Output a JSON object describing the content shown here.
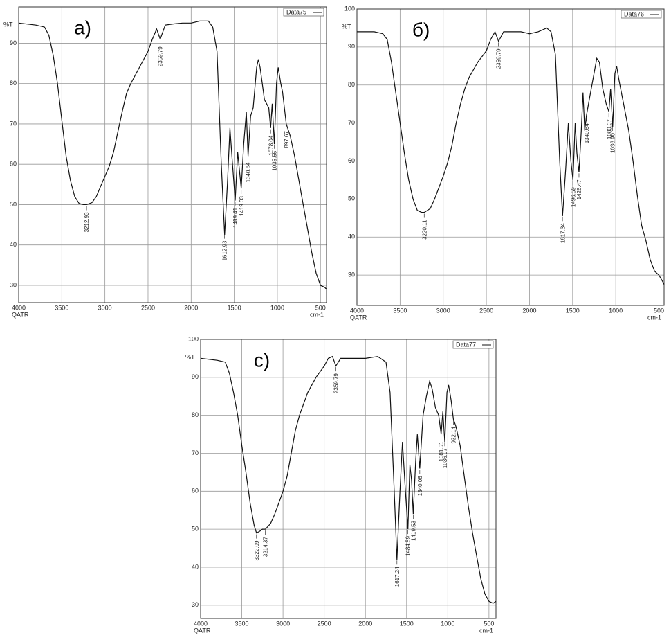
{
  "chart_data": [
    {
      "type": "line",
      "title": "a)",
      "y_label": "%T",
      "x_label": "cm-1",
      "mode_label": "QATR",
      "xlim": [
        4000,
        430
      ],
      "ylim": [
        25.7,
        99
      ],
      "xticks": [
        4000,
        3500,
        3000,
        2500,
        2000,
        1500,
        1000,
        500
      ],
      "yticks": [
        30,
        40,
        50,
        60,
        70,
        80,
        90
      ],
      "grid": true,
      "x": [
        4000,
        3800,
        3700,
        3650,
        3600,
        3550,
        3500,
        3450,
        3400,
        3350,
        3300,
        3250,
        3212,
        3150,
        3100,
        3050,
        3000,
        2950,
        2900,
        2850,
        2800,
        2750,
        2700,
        2600,
        2500,
        2450,
        2400,
        2359,
        2300,
        2200,
        2100,
        2000,
        1900,
        1800,
        1750,
        1700,
        1650,
        1612,
        1580,
        1550,
        1520,
        1489,
        1460,
        1419,
        1390,
        1360,
        1340,
        1310,
        1280,
        1240,
        1220,
        1200,
        1150,
        1100,
        1078,
        1060,
        1035,
        1010,
        990,
        960,
        940,
        897,
        850,
        800,
        750,
        700,
        650,
        600,
        550,
        500,
        450,
        430
      ],
      "series": [
        {
          "name": "Data75",
          "color": "#111111",
          "values": [
            95,
            94.5,
            94,
            92,
            87,
            80,
            71,
            62,
            56,
            52,
            50.3,
            50,
            50,
            50.5,
            52,
            54.5,
            57,
            59.5,
            63,
            68,
            73,
            77.5,
            80,
            84,
            88,
            91,
            93.5,
            91,
            94.5,
            94.8,
            95,
            95,
            95.5,
            95.5,
            94,
            88,
            60,
            42.5,
            55,
            69,
            60,
            51,
            63,
            54,
            65,
            73,
            62,
            72,
            74,
            84,
            86,
            84,
            76,
            74,
            69,
            75,
            65,
            80,
            84,
            80,
            78,
            70,
            67,
            62,
            56,
            50,
            44,
            38,
            33,
            30,
            29.5,
            29
          ]
        }
      ],
      "peaks": [
        {
          "value": 3212.93,
          "label": "3212.93"
        },
        {
          "value": 2359.79,
          "label": "2359.79"
        },
        {
          "value": 1612.93,
          "label": "1612.93"
        },
        {
          "value": 1489.41,
          "label": "1489.41"
        },
        {
          "value": 1419.03,
          "label": "1419.03"
        },
        {
          "value": 1340.64,
          "label": "1340.64"
        },
        {
          "value": 1078.04,
          "label": "1078.04"
        },
        {
          "value": 1035.55,
          "label": "1035.55"
        },
        {
          "value": 897.67,
          "label": "897.67"
        }
      ]
    },
    {
      "type": "line",
      "title": "б)",
      "y_label": "%T",
      "x_label": "cm-1",
      "mode_label": "QATR",
      "xlim": [
        4000,
        440
      ],
      "ylim": [
        22,
        100
      ],
      "xticks": [
        4000,
        3500,
        3000,
        2500,
        2000,
        1500,
        1000,
        500
      ],
      "yticks": [
        30,
        40,
        50,
        60,
        70,
        80,
        90,
        100
      ],
      "grid": true,
      "x": [
        4000,
        3800,
        3700,
        3650,
        3600,
        3550,
        3500,
        3450,
        3400,
        3350,
        3300,
        3250,
        3220,
        3150,
        3100,
        3050,
        3000,
        2950,
        2900,
        2850,
        2800,
        2750,
        2700,
        2600,
        2500,
        2450,
        2400,
        2359,
        2300,
        2200,
        2100,
        2000,
        1900,
        1800,
        1750,
        1700,
        1650,
        1617,
        1580,
        1550,
        1520,
        1496,
        1470,
        1450,
        1426,
        1400,
        1380,
        1360,
        1340,
        1300,
        1260,
        1220,
        1190,
        1150,
        1110,
        1080,
        1060,
        1036,
        1010,
        990,
        960,
        900,
        850,
        800,
        750,
        700,
        650,
        600,
        550,
        500,
        450,
        440
      ],
      "series": [
        {
          "name": "Data76",
          "color": "#111111",
          "values": [
            94,
            94,
            93.5,
            92,
            86,
            78,
            70,
            62,
            55,
            50,
            47,
            46.5,
            46.5,
            47.5,
            50,
            53,
            56,
            59.5,
            64,
            70,
            75,
            79,
            82,
            86,
            89,
            92,
            94,
            91.5,
            94,
            94,
            94,
            93.5,
            94,
            95,
            94,
            88,
            60,
            45.5,
            58,
            70,
            60,
            55,
            70,
            62,
            57,
            68,
            78,
            68,
            72,
            77,
            82,
            87,
            86,
            79,
            75,
            73,
            79,
            69,
            83,
            85,
            81,
            74,
            68,
            60,
            51,
            43,
            39,
            34,
            31,
            30,
            28,
            27.5
          ]
        }
      ],
      "peaks": [
        {
          "value": 3220.11,
          "label": "3220.11"
        },
        {
          "value": 2359.79,
          "label": "2359.79"
        },
        {
          "value": 1617.34,
          "label": "1617.34"
        },
        {
          "value": 1496.59,
          "label": "1496.59"
        },
        {
          "value": 1426.47,
          "label": "1426.47"
        },
        {
          "value": 1340.64,
          "label": "1340.64"
        },
        {
          "value": 1080.07,
          "label": "1080.07"
        },
        {
          "value": 1036.9,
          "label": "1036.90"
        }
      ]
    },
    {
      "type": "line",
      "title": "c)",
      "y_label": "%T",
      "x_label": "cm-1",
      "mode_label": "QATR",
      "xlim": [
        4000,
        415
      ],
      "ylim": [
        26.5,
        100
      ],
      "xticks": [
        4000,
        3500,
        3000,
        2500,
        2000,
        1500,
        1000,
        500
      ],
      "yticks": [
        30,
        40,
        50,
        60,
        70,
        80,
        90,
        100
      ],
      "grid": true,
      "x": [
        4000,
        3800,
        3700,
        3650,
        3600,
        3550,
        3500,
        3450,
        3400,
        3350,
        3322,
        3280,
        3250,
        3214,
        3150,
        3100,
        3050,
        3000,
        2950,
        2900,
        2850,
        2800,
        2700,
        2600,
        2500,
        2450,
        2400,
        2359,
        2300,
        2200,
        2000,
        1850,
        1750,
        1700,
        1650,
        1617,
        1580,
        1550,
        1520,
        1484,
        1460,
        1440,
        1419,
        1390,
        1370,
        1340,
        1300,
        1260,
        1220,
        1190,
        1150,
        1110,
        1081,
        1060,
        1036,
        1010,
        990,
        960,
        932,
        900,
        850,
        800,
        750,
        700,
        650,
        600,
        550,
        500,
        450,
        415
      ],
      "series": [
        {
          "name": "Data77",
          "color": "#111111",
          "values": [
            95,
            94.5,
            94,
            91,
            86,
            80,
            72,
            65,
            57,
            51,
            49,
            49.5,
            50,
            50,
            51.5,
            54,
            57,
            60,
            64,
            70,
            76,
            80,
            86,
            90,
            93,
            95,
            95.5,
            93,
            95,
            95,
            95,
            95.5,
            94,
            86,
            60,
            42,
            60,
            73,
            62,
            50,
            67,
            63,
            54,
            68,
            75,
            66,
            80,
            85,
            89,
            87,
            82,
            80,
            75,
            81,
            73,
            86,
            88,
            84,
            79,
            77,
            72,
            64,
            56,
            49,
            43,
            37,
            33,
            31,
            30.5,
            31
          ]
        }
      ],
      "peaks": [
        {
          "value": 3322.09,
          "label": "3322.09"
        },
        {
          "value": 3214.37,
          "label": "3214.37"
        },
        {
          "value": 2359.79,
          "label": "2359.79"
        },
        {
          "value": 1617.24,
          "label": "1617.24"
        },
        {
          "value": 1484.59,
          "label": "1484.59"
        },
        {
          "value": 1419.53,
          "label": "1419.53"
        },
        {
          "value": 1340.06,
          "label": "1340.06"
        },
        {
          "value": 1081.51,
          "label": "1081.51"
        },
        {
          "value": 1036.97,
          "label": "1036.97"
        },
        {
          "value": 932.14,
          "label": "932.14"
        }
      ]
    }
  ]
}
